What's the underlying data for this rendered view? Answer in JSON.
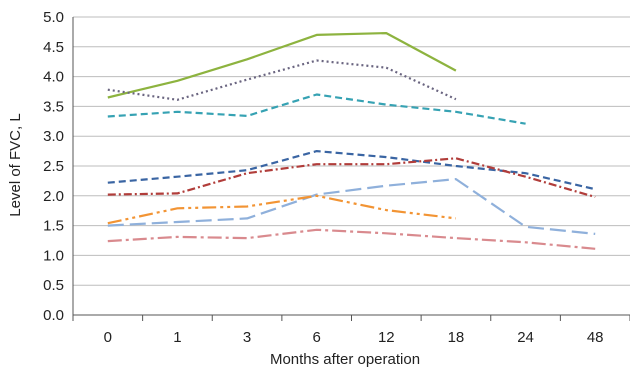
{
  "chart_data": {
    "type": "line",
    "xlabel": "Months after operation",
    "ylabel": "Level of FVC, L",
    "categories": [
      "0",
      "1",
      "3",
      "6",
      "12",
      "18",
      "24",
      "48"
    ],
    "y_ticks": [
      "0.0",
      "0.5",
      "1.0",
      "1.5",
      "2.0",
      "2.5",
      "3.0",
      "3.5",
      "4.0",
      "4.5",
      "5.0"
    ],
    "ylim": [
      0,
      5
    ],
    "grid": "horizontal",
    "legend": "none",
    "series": [
      {
        "color": "#8db33f",
        "dash": "solid",
        "values": [
          3.65,
          3.93,
          4.29,
          4.7,
          4.73,
          4.1,
          null,
          null
        ]
      },
      {
        "color": "#6a6580",
        "dash": "dotted",
        "values": [
          3.78,
          3.61,
          3.95,
          4.27,
          4.15,
          3.62,
          null,
          null
        ]
      },
      {
        "color": "#36a2b3",
        "dash": "dashed",
        "values": [
          3.33,
          3.41,
          3.34,
          3.7,
          3.53,
          3.41,
          3.21,
          null
        ]
      },
      {
        "color": "#3a65a3",
        "dash": "dashed",
        "values": [
          2.22,
          2.32,
          2.43,
          2.75,
          2.65,
          2.5,
          2.38,
          2.11
        ]
      },
      {
        "color": "#b13d3a",
        "dash": "dashdot",
        "values": [
          2.02,
          2.04,
          2.38,
          2.53,
          2.53,
          2.63,
          2.32,
          1.98
        ]
      },
      {
        "color": "#8fb0db",
        "dash": "longdash",
        "values": [
          1.5,
          1.56,
          1.62,
          2.02,
          2.17,
          2.28,
          1.48,
          1.36
        ]
      },
      {
        "color": "#f29434",
        "dash": "longdashdotdot",
        "values": [
          1.54,
          1.79,
          1.82,
          2.0,
          1.76,
          1.62,
          null,
          null
        ]
      },
      {
        "color": "#d98a8e",
        "dash": "longdashdot",
        "values": [
          1.24,
          1.31,
          1.29,
          1.43,
          1.37,
          1.29,
          1.22,
          1.11
        ]
      }
    ]
  }
}
